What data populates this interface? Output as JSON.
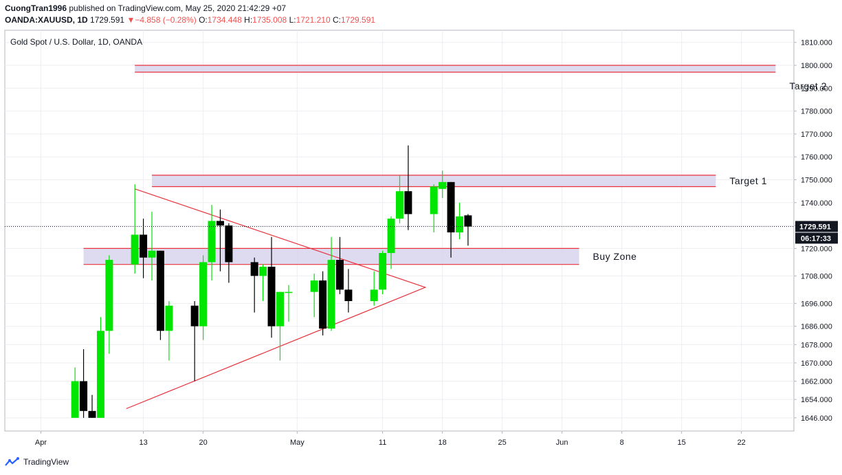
{
  "header": {
    "author": "CuongTran1996",
    "published_text": "published on TradingView.com, May 25, 2020 21:42:29 +07",
    "symbol": "OANDA:XAUUSD, 1D",
    "last": "1729.591",
    "change": "−4.858 (−0.28%)",
    "o_label": "O:",
    "o_value": "1734.448",
    "h_label": "H:",
    "h_value": "1735.008",
    "l_label": "L:",
    "l_value": "1721.210",
    "c_label": "C:",
    "c_value": "1729.591"
  },
  "footer": {
    "brand": "TradingView"
  },
  "colors": {
    "up": "#00e600",
    "down": "#000000",
    "zone_fill": "#d8d4ec",
    "zone_border": "#e8313b",
    "grid": "#eceef2"
  },
  "chart_data": {
    "type": "candlestick",
    "title": "Gold Spot / U.S. Dollar, 1D, OANDA",
    "ylim": [
      1643,
      1815
    ],
    "y_ticks": [
      1646,
      1654,
      1662,
      1670,
      1678,
      1686,
      1696,
      1708,
      1720,
      1730,
      1740,
      1750,
      1760,
      1770,
      1780,
      1790,
      1800,
      1810
    ],
    "x_ticks": [
      {
        "label": "Apr",
        "day": 1
      },
      {
        "label": "13",
        "day": 13
      },
      {
        "label": "20",
        "day": 20
      },
      {
        "label": "May",
        "day": 31
      },
      {
        "label": "11",
        "day": 41
      },
      {
        "label": "18",
        "day": 48
      },
      {
        "label": "25",
        "day": 55
      },
      {
        "label": "Jun",
        "day": 62
      },
      {
        "label": "8",
        "day": 69
      },
      {
        "label": "15",
        "day": 76
      },
      {
        "label": "22",
        "day": 83
      }
    ],
    "last_price_label": "1729.591",
    "countdown_label": "06:17:33",
    "last_price": 1729.591,
    "candles": [
      {
        "day": 5,
        "o": 1646,
        "h": 1668,
        "l": 1646,
        "c": 1662
      },
      {
        "day": 6,
        "o": 1662,
        "h": 1676,
        "l": 1646,
        "c": 1649
      },
      {
        "day": 7,
        "o": 1649,
        "h": 1656,
        "l": 1646,
        "c": 1646
      },
      {
        "day": 8,
        "o": 1646,
        "h": 1690,
        "l": 1646,
        "c": 1684
      },
      {
        "day": 9,
        "o": 1684,
        "h": 1717,
        "l": 1674,
        "c": 1715
      },
      {
        "day": 12,
        "o": 1713,
        "h": 1748,
        "l": 1709,
        "c": 1726
      },
      {
        "day": 13,
        "o": 1726,
        "h": 1733,
        "l": 1707,
        "c": 1716
      },
      {
        "day": 14,
        "o": 1716,
        "h": 1736,
        "l": 1706,
        "c": 1719
      },
      {
        "day": 15,
        "o": 1719,
        "h": 1719,
        "l": 1680,
        "c": 1684
      },
      {
        "day": 16,
        "o": 1684,
        "h": 1697,
        "l": 1671,
        "c": 1695
      },
      {
        "day": 19,
        "o": 1695,
        "h": 1697,
        "l": 1662,
        "c": 1686
      },
      {
        "day": 20,
        "o": 1686,
        "h": 1717,
        "l": 1680,
        "c": 1714
      },
      {
        "day": 21,
        "o": 1714,
        "h": 1739,
        "l": 1706,
        "c": 1732
      },
      {
        "day": 22,
        "o": 1732,
        "h": 1737,
        "l": 1710,
        "c": 1730
      },
      {
        "day": 23,
        "o": 1730,
        "h": 1731,
        "l": 1705,
        "c": 1714
      },
      {
        "day": 26,
        "o": 1714,
        "h": 1716,
        "l": 1692,
        "c": 1708
      },
      {
        "day": 27,
        "o": 1708,
        "h": 1713,
        "l": 1697,
        "c": 1712
      },
      {
        "day": 28,
        "o": 1712,
        "h": 1725,
        "l": 1681,
        "c": 1686
      },
      {
        "day": 29,
        "o": 1686,
        "h": 1701,
        "l": 1671,
        "c": 1701
      },
      {
        "day": 30,
        "o": 1701,
        "h": 1704,
        "l": 1688,
        "c": 1701
      },
      {
        "day": 33,
        "o": 1701,
        "h": 1709,
        "l": 1690,
        "c": 1706
      },
      {
        "day": 34,
        "o": 1706,
        "h": 1710,
        "l": 1682,
        "c": 1685
      },
      {
        "day": 35,
        "o": 1685,
        "h": 1725,
        "l": 1684,
        "c": 1715
      },
      {
        "day": 36,
        "o": 1715,
        "h": 1725,
        "l": 1700,
        "c": 1702
      },
      {
        "day": 37,
        "o": 1702,
        "h": 1711,
        "l": 1692,
        "c": 1697
      },
      {
        "day": 40,
        "o": 1697,
        "h": 1710,
        "l": 1695,
        "c": 1702
      },
      {
        "day": 41,
        "o": 1702,
        "h": 1719,
        "l": 1700,
        "c": 1718
      },
      {
        "day": 42,
        "o": 1718,
        "h": 1734,
        "l": 1711,
        "c": 1733
      },
      {
        "day": 43,
        "o": 1733,
        "h": 1752,
        "l": 1731,
        "c": 1745
      },
      {
        "day": 44,
        "o": 1745,
        "h": 1765,
        "l": 1728,
        "c": 1735
      },
      {
        "day": 47,
        "o": 1735,
        "h": 1748,
        "l": 1727,
        "c": 1747
      },
      {
        "day": 48,
        "o": 1746,
        "h": 1754,
        "l": 1742,
        "c": 1749
      },
      {
        "day": 49,
        "o": 1749,
        "h": 1749,
        "l": 1716,
        "c": 1727
      },
      {
        "day": 50,
        "o": 1727,
        "h": 1740,
        "l": 1724,
        "c": 1734
      },
      {
        "day": 51,
        "o": 1734.448,
        "h": 1735.008,
        "l": 1721.21,
        "c": 1729.591
      }
    ],
    "zones": [
      {
        "label": "Buy Zone",
        "from_day": 6,
        "to_day": 64,
        "low": 1713,
        "high": 1720
      },
      {
        "label": "Target 1",
        "from_day": 14,
        "to_day": 80,
        "low": 1747,
        "high": 1752
      },
      {
        "label": "Target 2",
        "from_day": 12,
        "to_day": 87,
        "low": 1797,
        "high": 1800
      }
    ],
    "triangle": [
      {
        "day": 12,
        "price": 1746
      },
      {
        "day": 46,
        "price": 1703
      },
      {
        "day": 11,
        "price": 1650
      }
    ]
  }
}
